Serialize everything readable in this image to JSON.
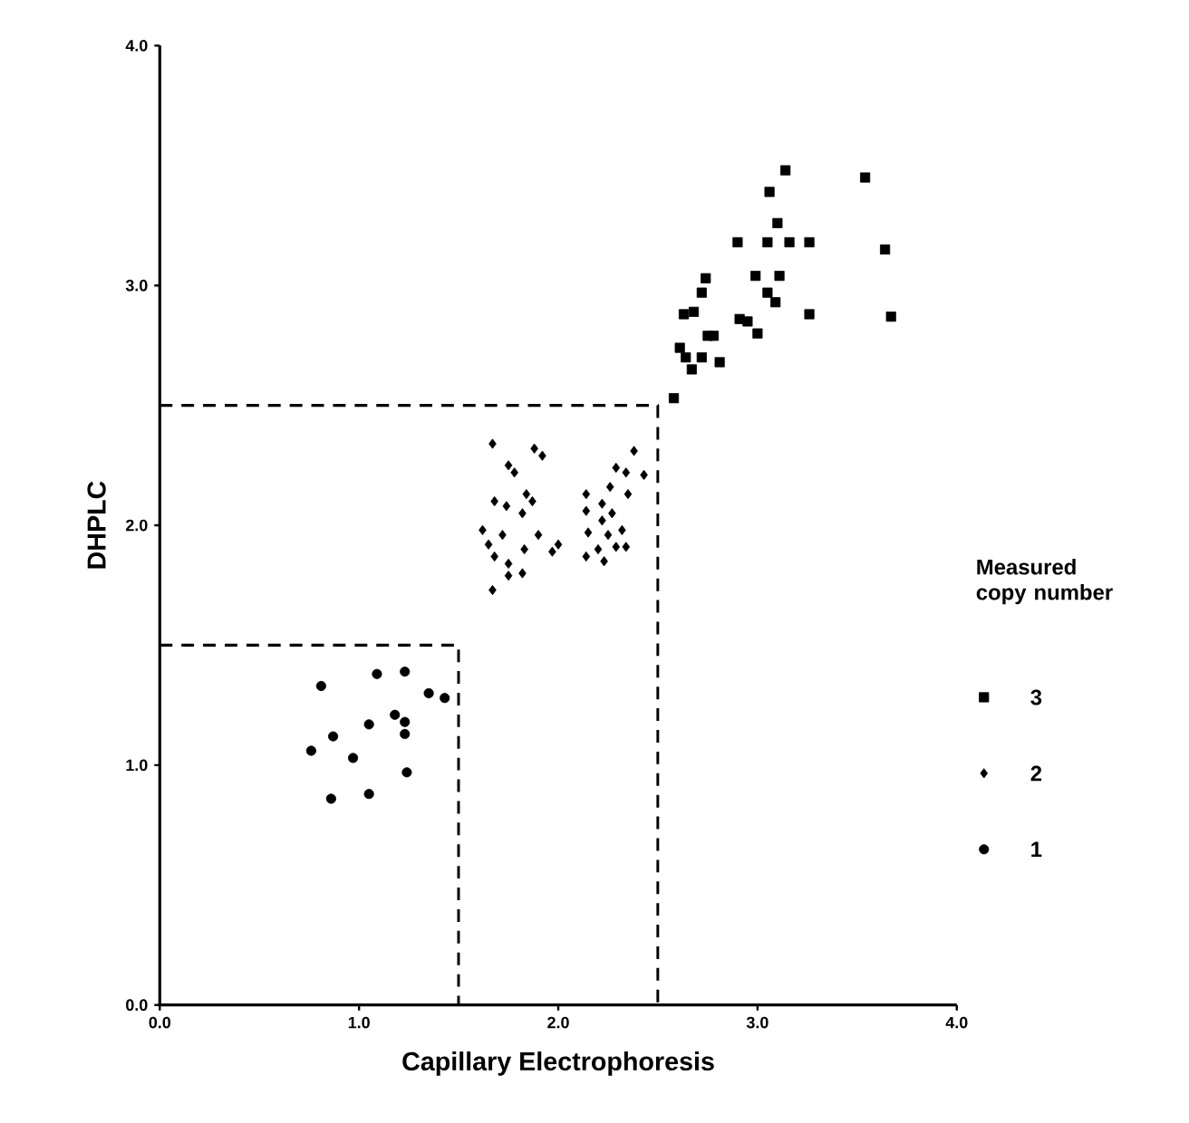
{
  "chart_data": {
    "type": "scatter",
    "xlabel": "Capillary Electrophoresis",
    "ylabel": "DHPLC",
    "legend_title": "Measured copy number",
    "legend": "right",
    "grid": false,
    "xlim": [
      0,
      4
    ],
    "ylim": [
      0,
      4
    ],
    "xticks": [
      {
        "value": 0,
        "label": "0.0"
      },
      {
        "value": 1,
        "label": "1.0"
      },
      {
        "value": 2,
        "label": "2.0"
      },
      {
        "value": 3,
        "label": "3.0"
      },
      {
        "value": 4,
        "label": "4.0"
      }
    ],
    "yticks": [
      {
        "value": 0,
        "label": "0.0"
      },
      {
        "value": 1,
        "label": "1.0"
      },
      {
        "value": 2,
        "label": "2.0"
      },
      {
        "value": 3,
        "label": "3.0"
      },
      {
        "value": 4,
        "label": "4.0"
      }
    ],
    "series": [
      {
        "name": "3",
        "color": "#000000",
        "marker": "square",
        "x": [
          2.58,
          2.61,
          2.64,
          2.67,
          2.72,
          2.81,
          2.75,
          2.78,
          2.63,
          2.68,
          2.72,
          2.74,
          2.9,
          2.91,
          2.95,
          3.0,
          2.99,
          3.05,
          3.09,
          3.11,
          3.05,
          3.1,
          3.16,
          3.06,
          3.14,
          3.26,
          3.26,
          3.54,
          3.64,
          3.67
        ],
        "values": [
          2.53,
          2.74,
          2.7,
          2.65,
          2.7,
          2.68,
          2.79,
          2.79,
          2.88,
          2.89,
          2.97,
          3.03,
          3.18,
          2.86,
          2.85,
          2.8,
          3.04,
          2.97,
          2.93,
          3.04,
          3.18,
          3.26,
          3.18,
          3.39,
          3.48,
          3.18,
          2.88,
          3.45,
          3.15,
          2.87
        ]
      },
      {
        "name": "2",
        "color": "#000000",
        "marker": "diamond",
        "x": [
          1.67,
          1.88,
          1.92,
          1.75,
          1.78,
          1.84,
          1.87,
          1.68,
          1.74,
          1.82,
          1.62,
          1.72,
          1.9,
          1.83,
          1.65,
          2.0,
          1.97,
          1.68,
          1.75,
          1.82,
          1.75,
          1.67,
          2.38,
          2.29,
          2.34,
          2.43,
          2.26,
          2.14,
          2.35,
          2.22,
          2.14,
          2.27,
          2.22,
          2.15,
          2.32,
          2.25,
          2.29,
          2.34,
          2.14,
          2.23,
          2.2
        ],
        "values": [
          2.34,
          2.32,
          2.29,
          2.25,
          2.22,
          2.13,
          2.1,
          2.1,
          2.08,
          2.05,
          1.98,
          1.96,
          1.96,
          1.9,
          1.92,
          1.92,
          1.89,
          1.87,
          1.84,
          1.8,
          1.79,
          1.73,
          2.31,
          2.24,
          2.22,
          2.21,
          2.16,
          2.13,
          2.13,
          2.09,
          2.06,
          2.05,
          2.02,
          1.97,
          1.98,
          1.96,
          1.91,
          1.91,
          1.87,
          1.85,
          1.9
        ]
      },
      {
        "name": "1",
        "color": "#000000",
        "marker": "circle",
        "x": [
          0.81,
          1.09,
          1.23,
          1.35,
          1.43,
          0.87,
          1.05,
          1.18,
          1.23,
          1.23,
          0.76,
          0.97,
          0.86,
          1.05,
          1.24
        ],
        "values": [
          1.33,
          1.38,
          1.39,
          1.3,
          1.28,
          1.12,
          1.17,
          1.21,
          1.18,
          1.13,
          1.06,
          1.03,
          0.86,
          0.88,
          0.97
        ]
      },
      {
        "type": "line",
        "color": "#000000",
        "line_style": "dashed",
        "marker": "none",
        "x": [
          0,
          1.5,
          1.5
        ],
        "values": [
          1.5,
          1.5,
          0
        ]
      },
      {
        "type": "line",
        "color": "#000000",
        "line_style": "dashed",
        "marker": "none",
        "x": [
          0,
          2.5,
          2.5
        ],
        "values": [
          2.5,
          2.5,
          0
        ]
      }
    ]
  }
}
